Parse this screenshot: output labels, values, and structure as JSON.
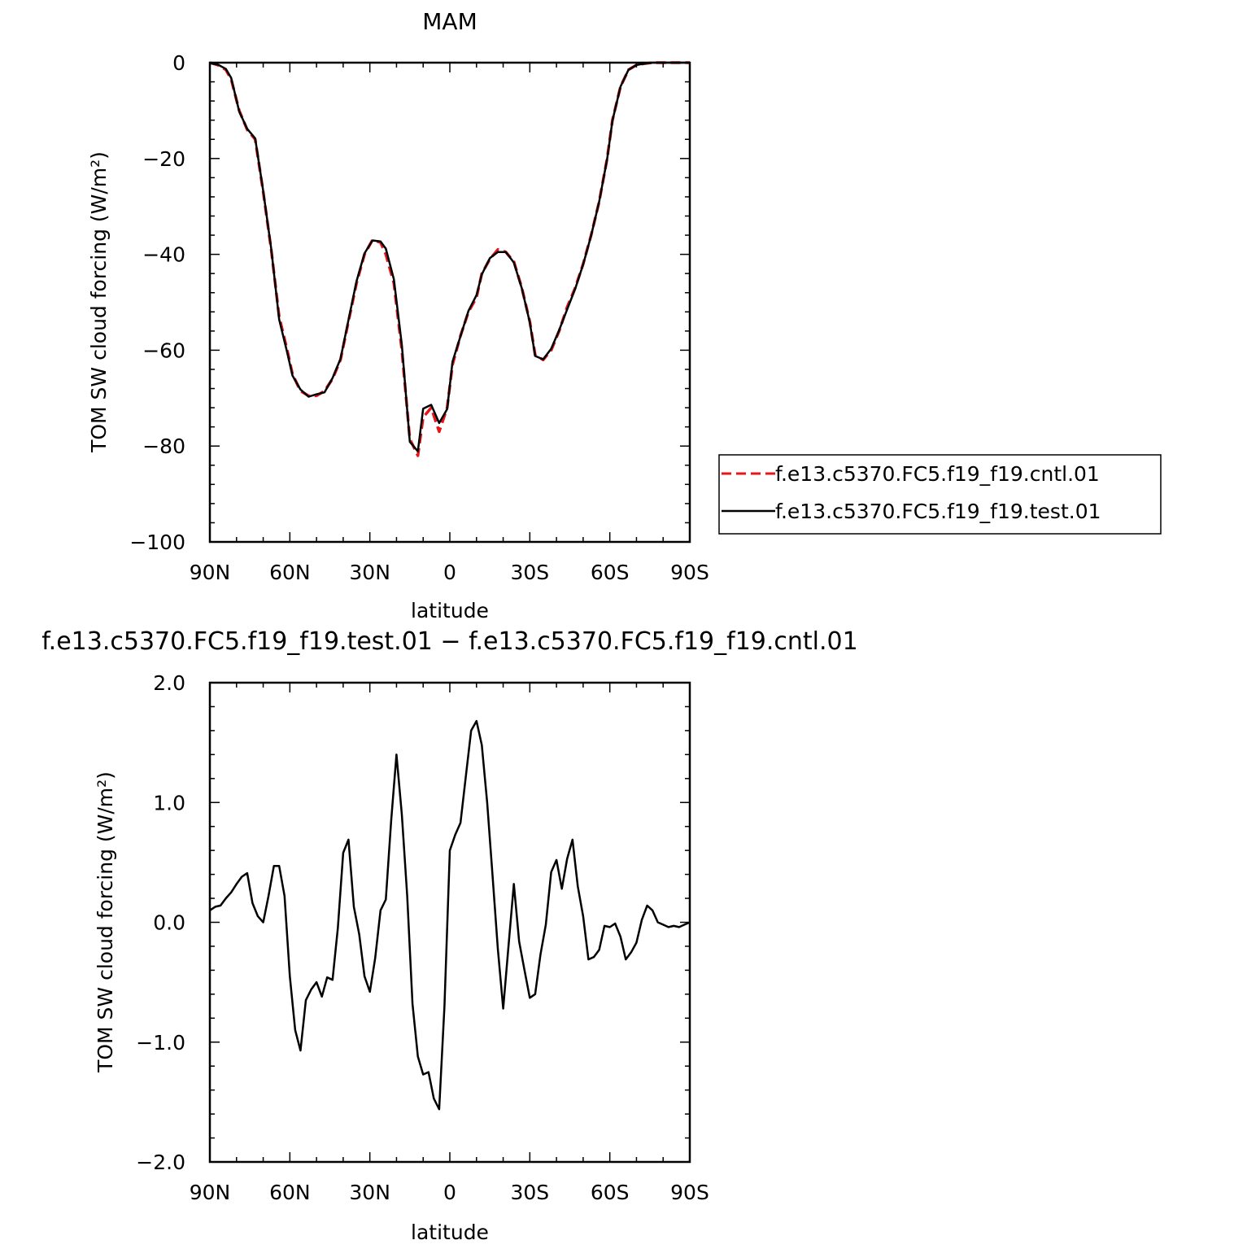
{
  "chart_data": [
    {
      "type": "line",
      "title": "MAM",
      "xlabel": "latitude",
      "ylabel": "TOM SW cloud forcing (W/m²)",
      "xlim": [
        90,
        -90
      ],
      "ylim": [
        -100,
        0
      ],
      "x_ticks": [
        90,
        60,
        30,
        0,
        -30,
        -60,
        -90
      ],
      "x_tick_labels": [
        "90N",
        "60N",
        "30N",
        "0",
        "30S",
        "60S",
        "90S"
      ],
      "y_ticks": [
        0,
        -20,
        -40,
        -60,
        -80,
        -100
      ],
      "y_tick_labels": [
        "0",
        "−20",
        "−40",
        "−60",
        "−80",
        "−100"
      ],
      "legend": "right",
      "series": [
        {
          "name": "f.e13.c5370.FC5.f19_f19.cntl.01",
          "color": "#e8161a",
          "dash": "dashed",
          "x": [
            90,
            87,
            84,
            82,
            79,
            76,
            73,
            70,
            67,
            64,
            61,
            59,
            56,
            53,
            50,
            47,
            44,
            41,
            38,
            35,
            32,
            29,
            26,
            24,
            21,
            18,
            15,
            12,
            10,
            7,
            4,
            1,
            -1,
            -4,
            -7,
            -10,
            -12,
            -15,
            -18,
            -21,
            -24,
            -27,
            -30,
            -32,
            -35,
            -38,
            -41,
            -44,
            -47,
            -50,
            -53,
            -56,
            -59,
            -61,
            -64,
            -67,
            -70,
            -73,
            -76,
            -79,
            -82,
            -84,
            -87,
            -90
          ],
          "y": [
            0,
            -0.5,
            -1.5,
            -3.5,
            -10,
            -14,
            -16,
            -27,
            -39,
            -53,
            -60,
            -65,
            -68.5,
            -69.5,
            -69.5,
            -68.5,
            -66,
            -62,
            -54,
            -46,
            -40,
            -37,
            -37.5,
            -40,
            -46,
            -60,
            -78.5,
            -82,
            -74,
            -72,
            -77,
            -72,
            -63,
            -57,
            -52,
            -49,
            -44,
            -41,
            -39,
            -39.5,
            -41.5,
            -47,
            -54,
            -61,
            -62,
            -60,
            -56,
            -51,
            -47,
            -42,
            -36,
            -29,
            -20,
            -12,
            -5,
            -1.5,
            -0.5,
            -0.2,
            0,
            0,
            0,
            0,
            0,
            0
          ]
        },
        {
          "name": "f.e13.c5370.FC5.f19_f19.test.01",
          "color": "#000000",
          "dash": "solid",
          "x": [
            90,
            87,
            84,
            82,
            79,
            76,
            73,
            70,
            67,
            64,
            61,
            59,
            56,
            53,
            50,
            47,
            44,
            41,
            38,
            35,
            32,
            29,
            26,
            24,
            21,
            18,
            15,
            12,
            10,
            7,
            4,
            1,
            -1,
            -4,
            -7,
            -10,
            -12,
            -15,
            -18,
            -21,
            -24,
            -27,
            -30,
            -32,
            -35,
            -38,
            -41,
            -44,
            -47,
            -50,
            -53,
            -56,
            -59,
            -61,
            -64,
            -67,
            -70,
            -73,
            -76,
            -79,
            -82,
            -84,
            -87,
            -90
          ],
          "y": [
            -0.1,
            -0.4,
            -1.3,
            -3.2,
            -10.2,
            -13.8,
            -15.8,
            -26.8,
            -38.8,
            -53.6,
            -60.5,
            -65.3,
            -68.2,
            -69.7,
            -69.2,
            -68.8,
            -65.8,
            -61.8,
            -53.7,
            -45.6,
            -39.8,
            -37.1,
            -37.3,
            -38.8,
            -45.2,
            -58.9,
            -79.1,
            -81.1,
            -72.2,
            -71.4,
            -75.2,
            -72.3,
            -62.4,
            -57.1,
            -51.8,
            -48.5,
            -44.2,
            -40.8,
            -39.5,
            -39.5,
            -41.7,
            -47.1,
            -54.2,
            -61.2,
            -61.9,
            -59.7,
            -55.8,
            -51.5,
            -47.2,
            -42.1,
            -36.1,
            -29.0,
            -20.1,
            -12.1,
            -5.0,
            -1.5,
            -0.5,
            -0.2,
            0,
            0,
            0,
            0,
            0,
            0
          ]
        }
      ]
    },
    {
      "type": "line",
      "title": "f.e13.c5370.FC5.f19_f19.test.01 − f.e13.c5370.FC5.f19_f19.cntl.01",
      "xlabel": "latitude",
      "ylabel": "TOM SW cloud forcing (W/m²)",
      "xlim": [
        90,
        -90
      ],
      "ylim": [
        -2,
        2
      ],
      "x_ticks": [
        90,
        60,
        30,
        0,
        -30,
        -60,
        -90
      ],
      "x_tick_labels": [
        "90N",
        "60N",
        "30N",
        "0",
        "30S",
        "60S",
        "90S"
      ],
      "y_ticks": [
        2,
        1,
        0,
        -1,
        -2
      ],
      "y_tick_labels": [
        "2.0",
        "1.0",
        "0.0",
        "−1.0",
        "−2.0"
      ],
      "series": [
        {
          "color": "#000000",
          "dash": "solid",
          "x": [
            90,
            88,
            86,
            84,
            82,
            80,
            78,
            76,
            74,
            72,
            70,
            68,
            66,
            64,
            62,
            60,
            58,
            56,
            54,
            52,
            50,
            48,
            46,
            44,
            42,
            40,
            38,
            36,
            34,
            32,
            30,
            28,
            26,
            24,
            22,
            20,
            18,
            16,
            14,
            12,
            10,
            8,
            6,
            4,
            2,
            0,
            -2,
            -4,
            -6,
            -8,
            -10,
            -12,
            -14,
            -16,
            -18,
            -20,
            -22,
            -24,
            -26,
            -28,
            -30,
            -32,
            -34,
            -36,
            -38,
            -40,
            -42,
            -44,
            -46,
            -48,
            -50,
            -52,
            -54,
            -56,
            -58,
            -60,
            -62,
            -64,
            -66,
            -68,
            -70,
            -72,
            -74,
            -76,
            -78,
            -80,
            -82,
            -84,
            -86,
            -88,
            -90
          ],
          "y": [
            0.1,
            0.13,
            0.14,
            0.2,
            0.25,
            0.32,
            0.38,
            0.41,
            0.16,
            0.05,
            0.0,
            0.22,
            0.47,
            0.47,
            0.22,
            -0.45,
            -0.9,
            -1.07,
            -0.65,
            -0.56,
            -0.5,
            -0.62,
            -0.46,
            -0.48,
            -0.05,
            0.58,
            0.69,
            0.13,
            -0.1,
            -0.45,
            -0.58,
            -0.3,
            0.1,
            0.19,
            0.85,
            1.4,
            0.9,
            0.22,
            -0.68,
            -1.12,
            -1.27,
            -1.25,
            -1.47,
            -1.56,
            -0.7,
            0.6,
            0.73,
            0.83,
            1.22,
            1.6,
            1.68,
            1.48,
            1.0,
            0.4,
            -0.22,
            -0.72,
            -0.2,
            0.32,
            -0.16,
            -0.4,
            -0.63,
            -0.6,
            -0.27,
            -0.02,
            0.42,
            0.52,
            0.28,
            0.53,
            0.69,
            0.3,
            0.05,
            -0.31,
            -0.29,
            -0.23,
            -0.03,
            -0.04,
            -0.01,
            -0.12,
            -0.31,
            -0.25,
            -0.17,
            0.02,
            0.14,
            0.1,
            0.0,
            -0.02,
            -0.04,
            -0.03,
            -0.04,
            -0.02,
            0.0
          ]
        }
      ]
    }
  ]
}
